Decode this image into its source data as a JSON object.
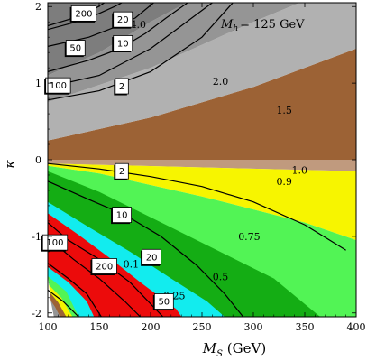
{
  "chart_data": {
    "type": "contour",
    "annotation": "= 125 GeV",
    "annotation_symbol": "M",
    "annotation_sub": "h",
    "xlabel": "M",
    "xlabel_sub": "S",
    "xlabel_unit": " (GeV)",
    "ylabel": "κ",
    "xlim": [
      100,
      400
    ],
    "ylim": [
      -2.05,
      2.05
    ],
    "x_ticks": [
      "100",
      "150",
      "200",
      "250",
      "300",
      "350",
      "400"
    ],
    "x_tick_values": [
      100,
      150,
      200,
      250,
      300,
      350,
      400
    ],
    "y_ticks": [
      "-2",
      "-1",
      "0",
      "1",
      "2"
    ],
    "y_tick_values": [
      -2,
      -1,
      0,
      1,
      2
    ],
    "colors": {
      "frame": "#000000",
      "dark_gray": "#7d7d7d",
      "mid_gray": "#959595",
      "light_gray": "#b1b1b1",
      "brown": "#9c6235",
      "tan": "#c09a7e",
      "yellow": "#f7f500",
      "light_green": "#52f455",
      "green": "#14ad14",
      "cyan": "#12ecee",
      "red": "#ec0b0b"
    },
    "region_labels": [
      {
        "text": "4.0",
        "x": 188,
        "y": 1.72
      },
      {
        "text": "2.0",
        "x": 268,
        "y": 0.98
      },
      {
        "text": "1.5",
        "x": 330,
        "y": 0.6
      },
      {
        "text": "1.0",
        "x": 345,
        "y": -0.18
      },
      {
        "text": "0.9",
        "x": 330,
        "y": -0.33
      },
      {
        "text": "0.75",
        "x": 296,
        "y": -1.05
      },
      {
        "text": "0.5",
        "x": 268,
        "y": -1.57
      },
      {
        "text": "0.25",
        "x": 223,
        "y": -1.82
      },
      {
        "text": "0.1",
        "x": 181,
        "y": -1.41
      }
    ],
    "contour_labels": [
      {
        "text": "200",
        "x": 135,
        "y": 1.91
      },
      {
        "text": "20",
        "x": 173,
        "y": 1.83
      },
      {
        "text": "50",
        "x": 127,
        "y": 1.46
      },
      {
        "text": "10",
        "x": 173,
        "y": 1.52
      },
      {
        "text": "100",
        "x": 110,
        "y": 0.97
      },
      {
        "text": "2",
        "x": 172,
        "y": 0.96
      },
      {
        "text": "2",
        "x": 172,
        "y": -0.15
      },
      {
        "text": "10",
        "x": 172,
        "y": -0.72
      },
      {
        "text": "100",
        "x": 107,
        "y": -1.08
      },
      {
        "text": "200",
        "x": 155,
        "y": -1.39
      },
      {
        "text": "20",
        "x": 201,
        "y": -1.27
      },
      {
        "text": "50",
        "x": 213,
        "y": -1.85
      }
    ],
    "contours": [
      [
        [
          100,
          1.75
        ],
        [
          120,
          1.83
        ],
        [
          140,
          1.92
        ],
        [
          155,
          2.05
        ]
      ],
      [
        [
          100,
          1.7
        ],
        [
          125,
          1.79
        ],
        [
          145,
          1.88
        ],
        [
          165,
          2.0
        ],
        [
          172,
          2.05
        ]
      ],
      [
        [
          100,
          1.48
        ],
        [
          140,
          1.6
        ],
        [
          165,
          1.73
        ],
        [
          185,
          1.85
        ],
        [
          203,
          2.05
        ]
      ],
      [
        [
          100,
          1.15
        ],
        [
          140,
          1.3
        ],
        [
          170,
          1.45
        ],
        [
          195,
          1.65
        ],
        [
          215,
          1.85
        ],
        [
          236,
          2.05
        ]
      ],
      [
        [
          100,
          0.95
        ],
        [
          150,
          1.1
        ],
        [
          200,
          1.45
        ],
        [
          230,
          1.75
        ],
        [
          260,
          2.05
        ]
      ],
      [
        [
          100,
          0.78
        ],
        [
          150,
          0.9
        ],
        [
          200,
          1.15
        ],
        [
          250,
          1.6
        ],
        [
          280,
          2.05
        ]
      ],
      [
        [
          100,
          -0.05
        ],
        [
          150,
          -0.12
        ],
        [
          200,
          -0.22
        ],
        [
          250,
          -0.35
        ],
        [
          300,
          -0.55
        ],
        [
          350,
          -0.85
        ],
        [
          390,
          -1.18
        ]
      ],
      [
        [
          100,
          -0.28
        ],
        [
          140,
          -0.52
        ],
        [
          175,
          -0.72
        ],
        [
          210,
          -1.0
        ],
        [
          245,
          -1.38
        ],
        [
          272,
          -1.75
        ],
        [
          290,
          -2.05
        ]
      ],
      [
        [
          100,
          -0.82
        ],
        [
          120,
          -1.05
        ],
        [
          150,
          -1.3
        ],
        [
          180,
          -1.6
        ],
        [
          212,
          -2.05
        ]
      ],
      [
        [
          100,
          -1.02
        ],
        [
          125,
          -1.3
        ],
        [
          150,
          -1.55
        ],
        [
          175,
          -1.85
        ],
        [
          190,
          -2.05
        ]
      ],
      [
        [
          100,
          -1.35
        ],
        [
          120,
          -1.55
        ],
        [
          138,
          -1.75
        ],
        [
          152,
          -2.05
        ]
      ],
      [
        [
          100,
          -1.7
        ],
        [
          115,
          -1.85
        ],
        [
          130,
          -2.05
        ]
      ]
    ]
  }
}
